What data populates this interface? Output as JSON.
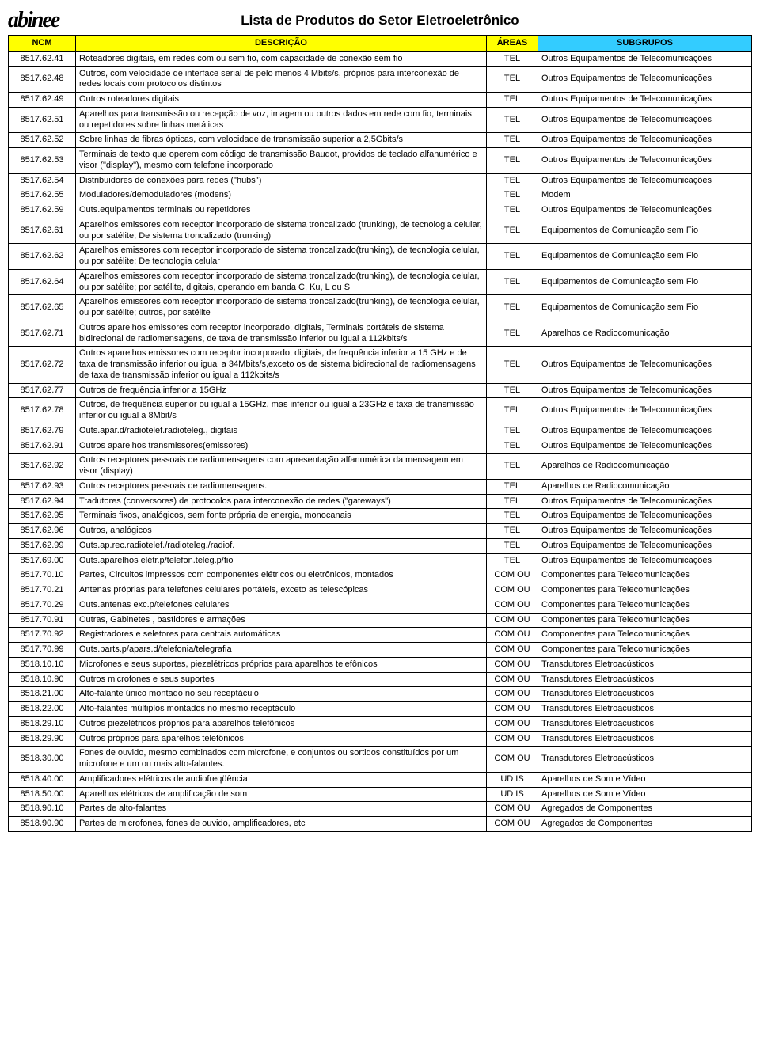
{
  "page": {
    "logo_text": "abinee",
    "title": "Lista de Produtos do Setor Eletroeletrônico"
  },
  "headers": {
    "ncm": "NCM",
    "desc": "DESCRIÇÃO",
    "area": "ÁREAS",
    "sub": "SUBGRUPOS",
    "ncm_bg": "#ffff00",
    "desc_bg": "#ffff00",
    "area_bg": "#ffff00",
    "sub_bg": "#33ccff"
  },
  "rows": [
    {
      "ncm": "8517.62.41",
      "desc": "Roteadores digitais, em redes com ou sem fio, com capacidade de conexão sem fio",
      "area": "TEL",
      "sub": "Outros Equipamentos de Telecomunicações"
    },
    {
      "ncm": "8517.62.48",
      "desc": "Outros, com velocidade de interface serial de pelo menos 4 Mbits/s, próprios para interconexão de redes locais com protocolos distintos",
      "area": "TEL",
      "sub": "Outros Equipamentos de Telecomunicações"
    },
    {
      "ncm": "8517.62.49",
      "desc": "Outros roteadores digitais",
      "area": "TEL",
      "sub": "Outros Equipamentos de Telecomunicações"
    },
    {
      "ncm": "8517.62.51",
      "desc": "Aparelhos para transmissão ou recepção de voz, imagem ou outros dados em rede com fio, terminais ou repetidores sobre linhas metálicas",
      "area": "TEL",
      "sub": "Outros Equipamentos de Telecomunicações"
    },
    {
      "ncm": "8517.62.52",
      "desc": "Sobre linhas de fibras ópticas, com velocidade de transmissão superior a 2,5Gbits/s",
      "area": "TEL",
      "sub": "Outros Equipamentos de Telecomunicações"
    },
    {
      "ncm": "8517.62.53",
      "desc": "Terminais de texto que operem com código de transmissão Baudot, providos de teclado alfanumérico e visor (\"display\"), mesmo com telefone incorporado",
      "area": "TEL",
      "sub": "Outros Equipamentos de Telecomunicações"
    },
    {
      "ncm": "8517.62.54",
      "desc": "Distribuidores de conexões para redes (\"hubs\")",
      "area": "TEL",
      "sub": "Outros Equipamentos de Telecomunicações"
    },
    {
      "ncm": "8517.62.55",
      "desc": "Moduladores/demoduladores (modens)",
      "area": "TEL",
      "sub": "Modem"
    },
    {
      "ncm": "8517.62.59",
      "desc": "Outs.equipamentos terminais ou repetidores",
      "area": "TEL",
      "sub": "Outros Equipamentos de Telecomunicações"
    },
    {
      "ncm": "8517.62.61",
      "desc": "Aparelhos emissores com receptor incorporado de sistema troncalizado (trunking), de tecnologia celular, ou por satélite; De sistema troncalizado (trunking)",
      "area": "TEL",
      "sub": "Equipamentos de Comunicação sem Fio"
    },
    {
      "ncm": "8517.62.62",
      "desc": "Aparelhos emissores com receptor incorporado de sistema troncalizado(trunking), de tecnologia celular, ou por satélite; De tecnologia celular",
      "area": "TEL",
      "sub": "Equipamentos de Comunicação sem Fio"
    },
    {
      "ncm": "8517.62.64",
      "desc": "Aparelhos emissores com receptor incorporado de sistema troncalizado(trunking), de tecnologia celular, ou por satélite; por satélite, digitais, operando em banda C, Ku, L ou S",
      "area": "TEL",
      "sub": "Equipamentos de Comunicação sem Fio"
    },
    {
      "ncm": "8517.62.65",
      "desc": "Aparelhos emissores com receptor incorporado de sistema troncalizado(trunking), de tecnologia celular, ou por satélite; outros, por satélite",
      "area": "TEL",
      "sub": "Equipamentos de Comunicação sem Fio"
    },
    {
      "ncm": "8517.62.71",
      "desc": "Outros aparelhos emissores com receptor incorporado, digitais, Terminais portáteis de sistema bidirecional de radiomensagens, de taxa de transmissão inferior ou igual a 112kbits/s",
      "area": "TEL",
      "sub": "Aparelhos de Radiocomunicação"
    },
    {
      "ncm": "8517.62.72",
      "desc": "Outros aparelhos emissores com receptor incorporado, digitais, de frequência inferior a 15 GHz e de taxa de transmissão inferior ou igual a 34Mbits/s,exceto os de sistema bidirecional de radiomensagens de taxa de transmissão inferior ou igual a 112kbits/s",
      "area": "TEL",
      "sub": "Outros Equipamentos de Telecomunicações"
    },
    {
      "ncm": "8517.62.77",
      "desc": "Outros de frequência inferior a 15GHz",
      "area": "TEL",
      "sub": "Outros Equipamentos de Telecomunicações"
    },
    {
      "ncm": "8517.62.78",
      "desc": "Outros, de frequência superior ou igual a 15GHz, mas inferior ou igual a 23GHz e taxa de transmissão inferior ou igual a 8Mbit/s",
      "area": "TEL",
      "sub": "Outros Equipamentos de Telecomunicações"
    },
    {
      "ncm": "8517.62.79",
      "desc": "Outs.apar.d/radiotelef.radioteleg., digitais",
      "area": "TEL",
      "sub": "Outros Equipamentos de Telecomunicações"
    },
    {
      "ncm": "8517.62.91",
      "desc": "Outros aparelhos transmissores(emissores)",
      "area": "TEL",
      "sub": "Outros Equipamentos de Telecomunicações"
    },
    {
      "ncm": "8517.62.92",
      "desc": "Outros receptores pessoais de radiomensagens com apresentação alfanumérica da mensagem em visor (display)",
      "area": "TEL",
      "sub": "Aparelhos de Radiocomunicação"
    },
    {
      "ncm": "8517.62.93",
      "desc": "Outros receptores pessoais de radiomensagens.",
      "area": "TEL",
      "sub": "Aparelhos de Radiocomunicação"
    },
    {
      "ncm": "8517.62.94",
      "desc": "Tradutores (conversores) de protocolos para interconexão de redes (\"gateways\")",
      "area": "TEL",
      "sub": "Outros Equipamentos de Telecomunicações"
    },
    {
      "ncm": "8517.62.95",
      "desc": "Terminais fixos, analógicos, sem fonte  própria de energia, monocanais",
      "area": "TEL",
      "sub": "Outros Equipamentos de Telecomunicações"
    },
    {
      "ncm": "8517.62.96",
      "desc": "Outros, analógicos",
      "area": "TEL",
      "sub": "Outros Equipamentos de Telecomunicações"
    },
    {
      "ncm": "8517.62.99",
      "desc": "Outs.ap.rec.radiotelef./radioteleg./radiof.",
      "area": "TEL",
      "sub": "Outros Equipamentos de Telecomunicações"
    },
    {
      "ncm": "8517.69.00",
      "desc": "Outs.aparelhos elétr.p/telefon.teleg.p/fio",
      "area": "TEL",
      "sub": "Outros Equipamentos de Telecomunicações"
    },
    {
      "ncm": "8517.70.10",
      "desc": "Partes, Circuitos impressos com componentes elétricos ou eletrônicos, montados",
      "area": "COM OU",
      "sub": "Componentes para Telecomunicações"
    },
    {
      "ncm": "8517.70.21",
      "desc": "Antenas próprias para telefones celulares portáteis, exceto as telescópicas",
      "area": "COM OU",
      "sub": "Componentes para Telecomunicações"
    },
    {
      "ncm": "8517.70.29",
      "desc": "Outs.antenas exc.p/telefones celulares",
      "area": "COM OU",
      "sub": "Componentes para Telecomunicações"
    },
    {
      "ncm": "8517.70.91",
      "desc": "Outras, Gabinetes , bastidores e armações",
      "area": "COM OU",
      "sub": "Componentes para Telecomunicações"
    },
    {
      "ncm": "8517.70.92",
      "desc": "Registradores e seletores para centrais automáticas",
      "area": "COM OU",
      "sub": "Componentes para Telecomunicações"
    },
    {
      "ncm": "8517.70.99",
      "desc": "Outs.parts.p/apars.d/telefonia/telegrafia",
      "area": "COM OU",
      "sub": "Componentes para Telecomunicações"
    },
    {
      "ncm": "8518.10.10",
      "desc": "Microfones e seus suportes, piezelétricos próprios para aparelhos telefônicos",
      "area": "COM OU",
      "sub": "Transdutores Eletroacústicos"
    },
    {
      "ncm": "8518.10.90",
      "desc": "Outros microfones e seus suportes",
      "area": "COM OU",
      "sub": "Transdutores Eletroacústicos"
    },
    {
      "ncm": "8518.21.00",
      "desc": "Alto-falante único montado no seu receptáculo",
      "area": "COM OU",
      "sub": "Transdutores Eletroacústicos"
    },
    {
      "ncm": "8518.22.00",
      "desc": "Alto-falantes múltiplos montados no mesmo receptáculo",
      "area": "COM OU",
      "sub": "Transdutores Eletroacústicos"
    },
    {
      "ncm": "8518.29.10",
      "desc": "Outros piezelétricos próprios para aparelhos telefônicos",
      "area": "COM OU",
      "sub": "Transdutores Eletroacústicos"
    },
    {
      "ncm": "8518.29.90",
      "desc": "Outros próprios para aparelhos telefônicos",
      "area": "COM OU",
      "sub": "Transdutores Eletroacústicos"
    },
    {
      "ncm": "8518.30.00",
      "desc": "Fones de ouvido, mesmo combinados com microfone, e conjuntos ou sortidos constituídos por um microfone e um ou mais alto-falantes.",
      "area": "COM OU",
      "sub": "Transdutores Eletroacústicos"
    },
    {
      "ncm": "8518.40.00",
      "desc": "Amplificadores elétricos de audiofreqüência",
      "area": "UD IS",
      "sub": "Aparelhos de Som e Vídeo"
    },
    {
      "ncm": "8518.50.00",
      "desc": "Aparelhos elétricos de amplificação de som",
      "area": "UD IS",
      "sub": "Aparelhos de Som e Vídeo"
    },
    {
      "ncm": "8518.90.10",
      "desc": "Partes de alto-falantes",
      "area": "COM OU",
      "sub": "Agregados de Componentes"
    },
    {
      "ncm": "8518.90.90",
      "desc": "Partes de microfones, fones de ouvido, amplificadores, etc",
      "area": "COM OU",
      "sub": "Agregados de Componentes"
    }
  ]
}
